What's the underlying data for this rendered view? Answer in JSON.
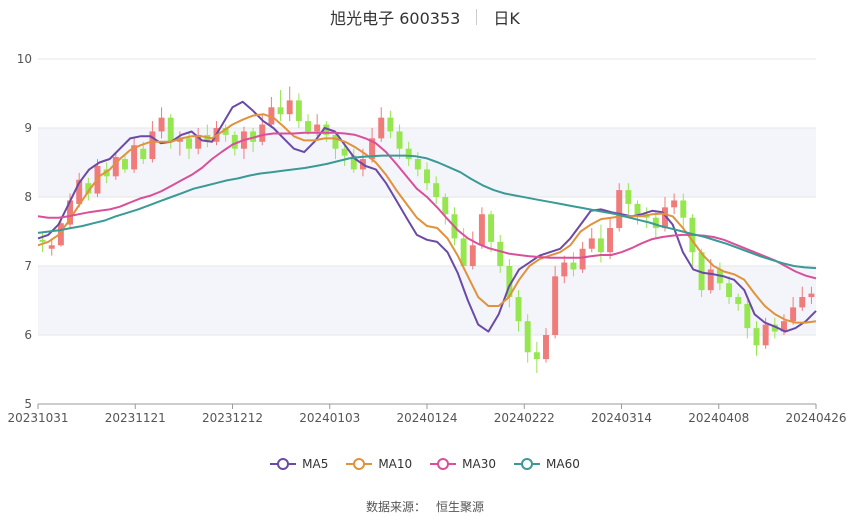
{
  "title": {
    "stock": "旭光电子 600353",
    "period": "日K"
  },
  "source": {
    "label": "数据来源：",
    "value": "恒生聚源"
  },
  "chart_data": {
    "type": "candlestick",
    "x_ticks": [
      "20231031",
      "20231121",
      "20231212",
      "20240103",
      "20240124",
      "20240222",
      "20240314",
      "20240408",
      "20240426"
    ],
    "y_ticks": [
      5,
      6,
      7,
      8,
      9,
      10
    ],
    "ylim": [
      5,
      10
    ],
    "grid": true,
    "legend_position": "bottom",
    "colors": {
      "up": "#f07b7b",
      "down": "#96e650",
      "MA5": "#6a4aa6",
      "MA10": "#e0923c",
      "MA30": "#d9509a",
      "MA60": "#3a9a96"
    },
    "series": [
      {
        "name": "MA5",
        "values": [
          7.4,
          7.45,
          7.6,
          7.9,
          8.2,
          8.4,
          8.5,
          8.55,
          8.7,
          8.85,
          8.88,
          8.88,
          8.78,
          8.8,
          8.9,
          8.95,
          8.82,
          8.8,
          9.05,
          9.3,
          9.38,
          9.25,
          9.1,
          9.0,
          8.85,
          8.7,
          8.65,
          8.8,
          9.0,
          8.95,
          8.75,
          8.55,
          8.45,
          8.4,
          8.2,
          7.95,
          7.7,
          7.45,
          7.38,
          7.35,
          7.2,
          6.9,
          6.5,
          6.15,
          6.05,
          6.3,
          6.7,
          6.95,
          7.05,
          7.15,
          7.2,
          7.25,
          7.4,
          7.6,
          7.8,
          7.82,
          7.78,
          7.75,
          7.72,
          7.75,
          7.8,
          7.78,
          7.6,
          7.2,
          6.95,
          6.9,
          6.88,
          6.85,
          6.8,
          6.65,
          6.3,
          6.18,
          6.12,
          6.05,
          6.1,
          6.2,
          6.35
        ]
      },
      {
        "name": "MA10",
        "values": [
          7.3,
          7.35,
          7.45,
          7.65,
          7.88,
          8.1,
          8.3,
          8.4,
          8.55,
          8.68,
          8.75,
          8.8,
          8.8,
          8.8,
          8.85,
          8.88,
          8.88,
          8.85,
          8.95,
          9.05,
          9.12,
          9.18,
          9.2,
          9.15,
          9.02,
          8.88,
          8.82,
          8.82,
          8.85,
          8.85,
          8.8,
          8.72,
          8.62,
          8.5,
          8.32,
          8.1,
          7.9,
          7.7,
          7.58,
          7.55,
          7.4,
          7.15,
          6.85,
          6.55,
          6.42,
          6.42,
          6.55,
          6.8,
          7.0,
          7.1,
          7.15,
          7.2,
          7.3,
          7.5,
          7.6,
          7.68,
          7.7,
          7.72,
          7.72,
          7.72,
          7.75,
          7.76,
          7.72,
          7.55,
          7.35,
          7.15,
          7.0,
          6.92,
          6.88,
          6.8,
          6.6,
          6.42,
          6.3,
          6.22,
          6.18,
          6.18,
          6.2
        ]
      },
      {
        "name": "MA30",
        "values": [
          7.72,
          7.7,
          7.7,
          7.72,
          7.75,
          7.78,
          7.8,
          7.82,
          7.86,
          7.92,
          7.98,
          8.02,
          8.08,
          8.16,
          8.24,
          8.32,
          8.42,
          8.55,
          8.66,
          8.76,
          8.82,
          8.86,
          8.9,
          8.92,
          8.92,
          8.92,
          8.93,
          8.93,
          8.93,
          8.93,
          8.92,
          8.9,
          8.85,
          8.78,
          8.65,
          8.48,
          8.3,
          8.12,
          8.0,
          7.85,
          7.68,
          7.52,
          7.4,
          7.32,
          7.26,
          7.22,
          7.18,
          7.16,
          7.14,
          7.13,
          7.12,
          7.12,
          7.12,
          7.12,
          7.14,
          7.16,
          7.16,
          7.2,
          7.26,
          7.33,
          7.39,
          7.42,
          7.44,
          7.45,
          7.45,
          7.44,
          7.42,
          7.38,
          7.32,
          7.26,
          7.2,
          7.14,
          7.08,
          7.0,
          6.92,
          6.86,
          6.82
        ]
      },
      {
        "name": "MA60",
        "values": [
          7.48,
          7.5,
          7.52,
          7.55,
          7.58,
          7.62,
          7.66,
          7.72,
          7.77,
          7.82,
          7.88,
          7.94,
          8.0,
          8.06,
          8.12,
          8.16,
          8.2,
          8.24,
          8.27,
          8.31,
          8.34,
          8.36,
          8.38,
          8.4,
          8.42,
          8.45,
          8.48,
          8.52,
          8.56,
          8.58,
          8.59,
          8.6,
          8.6,
          8.6,
          8.59,
          8.56,
          8.5,
          8.43,
          8.36,
          8.26,
          8.17,
          8.1,
          8.05,
          8.02,
          7.99,
          7.96,
          7.93,
          7.9,
          7.87,
          7.84,
          7.81,
          7.78,
          7.75,
          7.71,
          7.67,
          7.63,
          7.58,
          7.54,
          7.5,
          7.46,
          7.42,
          7.37,
          7.32,
          7.26,
          7.2,
          7.14,
          7.09,
          7.04,
          7.0,
          6.98,
          6.97
        ]
      }
    ],
    "candles": [
      [
        7.38,
        7.35,
        7.48,
        7.2
      ],
      [
        7.25,
        7.3,
        7.4,
        7.15
      ],
      [
        7.3,
        7.62,
        7.7,
        7.28
      ],
      [
        7.6,
        7.95,
        8.05,
        7.55
      ],
      [
        7.9,
        8.25,
        8.35,
        7.85
      ],
      [
        8.2,
        8.05,
        8.28,
        7.95
      ],
      [
        8.05,
        8.45,
        8.55,
        8.0
      ],
      [
        8.4,
        8.3,
        8.5,
        8.2
      ],
      [
        8.3,
        8.58,
        8.65,
        8.25
      ],
      [
        8.55,
        8.4,
        8.62,
        8.35
      ],
      [
        8.4,
        8.75,
        8.85,
        8.35
      ],
      [
        8.7,
        8.55,
        8.8,
        8.48
      ],
      [
        8.55,
        8.95,
        9.1,
        8.5
      ],
      [
        8.95,
        9.15,
        9.3,
        8.85
      ],
      [
        9.15,
        8.8,
        9.2,
        8.7
      ],
      [
        8.8,
        8.85,
        8.95,
        8.6
      ],
      [
        8.85,
        8.7,
        8.92,
        8.55
      ],
      [
        8.7,
        8.9,
        9.0,
        8.62
      ],
      [
        8.9,
        8.8,
        9.05,
        8.72
      ],
      [
        8.8,
        9.0,
        9.1,
        8.75
      ],
      [
        9.0,
        8.9,
        9.05,
        8.8
      ],
      [
        8.9,
        8.7,
        8.95,
        8.6
      ],
      [
        8.7,
        8.95,
        9.02,
        8.55
      ],
      [
        8.95,
        8.8,
        9.0,
        8.65
      ],
      [
        8.8,
        9.05,
        9.2,
        8.75
      ],
      [
        9.05,
        9.3,
        9.45,
        9.0
      ],
      [
        9.3,
        9.2,
        9.55,
        9.1
      ],
      [
        9.2,
        9.4,
        9.6,
        9.1
      ],
      [
        9.4,
        9.1,
        9.5,
        9.0
      ],
      [
        9.1,
        8.95,
        9.2,
        8.9
      ],
      [
        8.95,
        9.05,
        9.2,
        8.88
      ],
      [
        9.05,
        8.9,
        9.1,
        8.8
      ],
      [
        8.9,
        8.7,
        8.95,
        8.55
      ],
      [
        8.7,
        8.6,
        8.8,
        8.45
      ],
      [
        8.6,
        8.4,
        8.7,
        8.35
      ],
      [
        8.4,
        8.55,
        8.7,
        8.3
      ],
      [
        8.55,
        8.85,
        9.0,
        8.5
      ],
      [
        8.85,
        9.15,
        9.3,
        8.8
      ],
      [
        9.15,
        8.95,
        9.25,
        8.85
      ],
      [
        8.95,
        8.7,
        9.05,
        8.55
      ],
      [
        8.7,
        8.55,
        8.8,
        8.45
      ],
      [
        8.55,
        8.4,
        8.65,
        8.3
      ],
      [
        8.4,
        8.2,
        8.5,
        8.1
      ],
      [
        8.2,
        8.0,
        8.3,
        7.9
      ],
      [
        8.0,
        7.75,
        8.05,
        7.6
      ],
      [
        7.75,
        7.4,
        7.85,
        7.3
      ],
      [
        7.4,
        7.0,
        7.55,
        6.95
      ],
      [
        7.0,
        7.3,
        7.5,
        6.95
      ],
      [
        7.3,
        7.75,
        7.85,
        7.25
      ],
      [
        7.75,
        7.35,
        7.8,
        7.2
      ],
      [
        7.35,
        7.0,
        7.45,
        6.9
      ],
      [
        7.0,
        6.55,
        7.1,
        6.4
      ],
      [
        6.55,
        6.2,
        6.65,
        6.05
      ],
      [
        6.2,
        5.75,
        6.3,
        5.6
      ],
      [
        5.75,
        5.65,
        5.9,
        5.45
      ],
      [
        5.65,
        6.0,
        6.1,
        5.6
      ],
      [
        6.0,
        6.85,
        7.0,
        5.95
      ],
      [
        6.85,
        7.05,
        7.15,
        6.75
      ],
      [
        7.05,
        6.95,
        7.2,
        6.85
      ],
      [
        6.95,
        7.25,
        7.35,
        6.9
      ],
      [
        7.25,
        7.4,
        7.55,
        7.2
      ],
      [
        7.4,
        7.2,
        7.6,
        7.05
      ],
      [
        7.2,
        7.55,
        7.7,
        7.1
      ],
      [
        7.55,
        8.1,
        8.2,
        7.5
      ],
      [
        8.1,
        7.9,
        8.2,
        7.75
      ],
      [
        7.9,
        7.75,
        7.95,
        7.6
      ],
      [
        7.75,
        7.7,
        7.85,
        7.55
      ],
      [
        7.7,
        7.55,
        7.8,
        7.4
      ],
      [
        7.55,
        7.85,
        8.0,
        7.5
      ],
      [
        7.85,
        7.95,
        8.05,
        7.75
      ],
      [
        7.95,
        7.7,
        8.05,
        7.55
      ],
      [
        7.7,
        7.2,
        7.75,
        7.0
      ],
      [
        7.2,
        6.65,
        7.25,
        6.55
      ],
      [
        6.65,
        6.95,
        7.1,
        6.6
      ],
      [
        6.95,
        6.75,
        7.05,
        6.65
      ],
      [
        6.75,
        6.55,
        6.85,
        6.45
      ],
      [
        6.55,
        6.45,
        6.6,
        6.35
      ],
      [
        6.45,
        6.1,
        6.5,
        5.95
      ],
      [
        6.1,
        5.85,
        6.2,
        5.7
      ],
      [
        5.85,
        6.15,
        6.25,
        5.8
      ],
      [
        6.15,
        6.05,
        6.25,
        5.95
      ],
      [
        6.05,
        6.2,
        6.3,
        6.0
      ],
      [
        6.2,
        6.4,
        6.55,
        6.15
      ],
      [
        6.4,
        6.55,
        6.7,
        6.35
      ],
      [
        6.55,
        6.6,
        6.7,
        6.45
      ]
    ]
  }
}
